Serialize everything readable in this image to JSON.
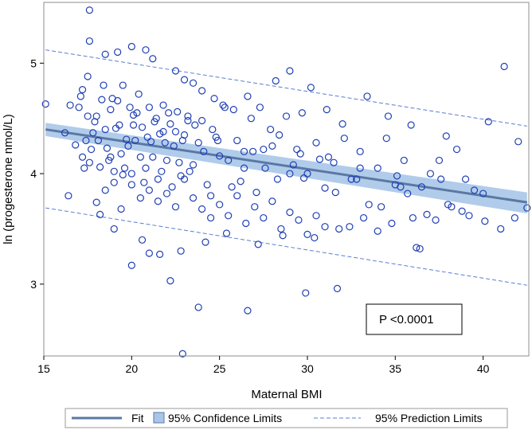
{
  "chart_data": {
    "type": "scatter",
    "title": "",
    "xlabel": "Maternal BMI",
    "ylabel": "ln (progesterone nmol/L)",
    "xlim": [
      15,
      42.6
    ],
    "ylim": [
      2.35,
      5.55
    ],
    "xticks": [
      15,
      20,
      25,
      30,
      35,
      40
    ],
    "yticks": [
      3,
      4,
      5
    ],
    "xtick_labels": [
      "15",
      "20",
      "25",
      "30",
      "35",
      "40"
    ],
    "ytick_labels": [
      "3",
      "4",
      "5"
    ],
    "grid": false,
    "marker_color": "#1f3fb5",
    "fit_color": "#5a78a3",
    "band_color": "#a9c6e8",
    "fit": {
      "x": [
        15.1,
        42.5
      ],
      "y": [
        4.4,
        3.74
      ]
    },
    "confidence_limits": {
      "x": [
        15.1,
        42.5
      ],
      "lower": [
        4.34,
        3.64
      ],
      "upper": [
        4.46,
        3.83
      ]
    },
    "prediction_limits": {
      "x": [
        15.1,
        42.5
      ],
      "lower": [
        3.69,
        2.99
      ],
      "upper": [
        5.12,
        4.43
      ]
    },
    "points": {
      "x": [
        15.1,
        16.2,
        16.5,
        16.8,
        17.0,
        17.2,
        17.4,
        17.5,
        17.6,
        17.8,
        18.0,
        18.1,
        18.3,
        18.5,
        18.6,
        18.8,
        19.0,
        19.1,
        19.2,
        19.4,
        19.5,
        19.7,
        19.9,
        20.0,
        20.1,
        20.2,
        20.4,
        20.5,
        20.6,
        20.8,
        21.0,
        21.1,
        21.3,
        21.5,
        21.6,
        21.8,
        22.0,
        22.2,
        22.4,
        22.6,
        22.8,
        23.0,
        23.2,
        23.5,
        23.8,
        24.0,
        24.3,
        24.6,
        25.0,
        25.3,
        25.7,
        26.0,
        26.4,
        26.8,
        27.1,
        27.5,
        27.9,
        28.3,
        28.8,
        29.2,
        29.6,
        30.0,
        30.5,
        31.0,
        31.5,
        32.0,
        32.5,
        33.0,
        33.5,
        34.0,
        34.5,
        35.0,
        35.5,
        36.0,
        36.5,
        37.0,
        37.5,
        38.0,
        38.5,
        39.0,
        39.5,
        40.0,
        41.0,
        42.0,
        42.5,
        17.1,
        17.5,
        17.7,
        17.9,
        18.2,
        18.4,
        18.7,
        18.9,
        19.3,
        19.6,
        19.8,
        20.3,
        20.7,
        20.9,
        21.2,
        21.4,
        21.7,
        21.9,
        22.1,
        22.3,
        22.5,
        22.7,
        22.9,
        23.3,
        23.6,
        24.1,
        24.5,
        24.8,
        25.5,
        26.2,
        26.9,
        27.6,
        28.4,
        29.0,
        29.8,
        30.7,
        31.6,
        32.8,
        34.2,
        35.7,
        36.8,
        38.2,
        40.1,
        16.4,
        17.3,
        18.0,
        18.5,
        19.0,
        19.5,
        20.0,
        20.5,
        21.0,
        21.5,
        22.0,
        22.5,
        23.0,
        23.5,
        24.0,
        24.5,
        25.0,
        25.5,
        26.0,
        26.5,
        27.0,
        27.5,
        28.0,
        28.5,
        29.0,
        29.5,
        30.0,
        30.5,
        31.0,
        31.8,
        33.2,
        34.8,
        35.3,
        36.2,
        37.3,
        39.2,
        17.6,
        17.6,
        18.5,
        19.2,
        20.0,
        20.8,
        21.2,
        22.5,
        23.0,
        23.5,
        24.0,
        24.7,
        25.2,
        25.8,
        26.6,
        27.3,
        28.2,
        29.0,
        29.7,
        30.2,
        31.1,
        32.1,
        33.4,
        34.6,
        35.9,
        37.9,
        40.3,
        41.2,
        22.2,
        23.8,
        26.6,
        22.9,
        29.9,
        31.7,
        21.0,
        20.0,
        19.0,
        18.2,
        21.6,
        20.6,
        19.4,
        22.8,
        24.2,
        25.4,
        27.2,
        28.6,
        30.4,
        32.4,
        34.0,
        36.4,
        38.8,
        41.8,
        17.2,
        18.8,
        20.1,
        21.8,
        23.2,
        24.9,
        26.4,
        28.0,
        29.4,
        31.2,
        33.0,
        35.1,
        37.6
      ],
      "y": [
        4.63,
        4.37,
        4.62,
        4.26,
        4.6,
        4.76,
        4.3,
        4.52,
        4.1,
        4.37,
        4.52,
        4.3,
        4.67,
        4.4,
        4.23,
        4.58,
        4.02,
        4.41,
        4.66,
        4.18,
        4.8,
        4.31,
        4.6,
        4.0,
        4.53,
        4.3,
        4.72,
        4.15,
        4.42,
        4.05,
        4.6,
        4.29,
        4.47,
        3.95,
        4.36,
        4.62,
        4.12,
        4.45,
        4.25,
        4.56,
        3.98,
        4.35,
        4.52,
        4.08,
        4.28,
        4.48,
        3.9,
        4.4,
        4.16,
        4.6,
        3.88,
        4.3,
        4.05,
        4.5,
        3.83,
        4.22,
        4.4,
        3.95,
        4.52,
        4.08,
        4.18,
        4.0,
        4.28,
        3.87,
        4.1,
        4.45,
        3.95,
        4.2,
        3.72,
        4.05,
        4.32,
        3.9,
        4.12,
        3.6,
        3.88,
        4.0,
        4.12,
        3.72,
        4.22,
        3.95,
        3.85,
        3.82,
        3.5,
        4.29,
        3.69,
        4.7,
        4.88,
        4.22,
        4.47,
        4.06,
        4.8,
        4.12,
        4.68,
        4.44,
        4.05,
        4.25,
        4.55,
        3.92,
        4.33,
        4.15,
        4.5,
        4.02,
        4.28,
        4.55,
        3.88,
        4.38,
        4.1,
        4.3,
        4.02,
        4.44,
        4.2,
        3.8,
        4.33,
        4.12,
        3.93,
        4.2,
        4.05,
        4.35,
        4.0,
        3.96,
        4.13,
        3.83,
        3.95,
        3.7,
        3.82,
        3.63,
        3.7,
        3.57,
        3.8,
        4.05,
        3.74,
        3.85,
        3.92,
        3.99,
        3.9,
        3.78,
        3.85,
        3.75,
        3.82,
        3.7,
        3.95,
        3.78,
        3.68,
        3.6,
        3.72,
        3.62,
        3.8,
        3.55,
        3.7,
        3.6,
        3.75,
        3.5,
        3.65,
        3.58,
        3.45,
        3.62,
        3.52,
        3.5,
        3.6,
        3.55,
        3.88,
        3.33,
        3.58,
        3.62,
        5.48,
        5.2,
        5.08,
        5.1,
        5.15,
        5.12,
        5.04,
        4.93,
        4.85,
        4.82,
        4.75,
        4.68,
        4.62,
        4.58,
        4.7,
        4.6,
        4.84,
        4.93,
        4.55,
        4.78,
        4.58,
        4.32,
        4.7,
        4.52,
        4.44,
        4.34,
        4.47,
        4.97,
        3.03,
        2.79,
        2.76,
        2.37,
        2.92,
        2.96,
        3.28,
        3.17,
        3.5,
        3.63,
        3.27,
        3.4,
        3.68,
        3.3,
        3.38,
        3.46,
        3.36,
        3.44,
        3.42,
        3.52,
        3.48,
        3.32,
        3.66,
        3.6,
        4.15,
        4.15,
        4.44,
        4.38,
        4.48,
        4.3,
        4.2,
        4.25,
        4.22,
        4.15,
        4.05,
        3.98,
        3.95
      ]
    }
  },
  "legend": {
    "fit_label": "Fit",
    "confidence_label": "95% Confidence Limits",
    "prediction_label": "95% Prediction Limits"
  },
  "annotation": {
    "text": "P <0.0001"
  }
}
